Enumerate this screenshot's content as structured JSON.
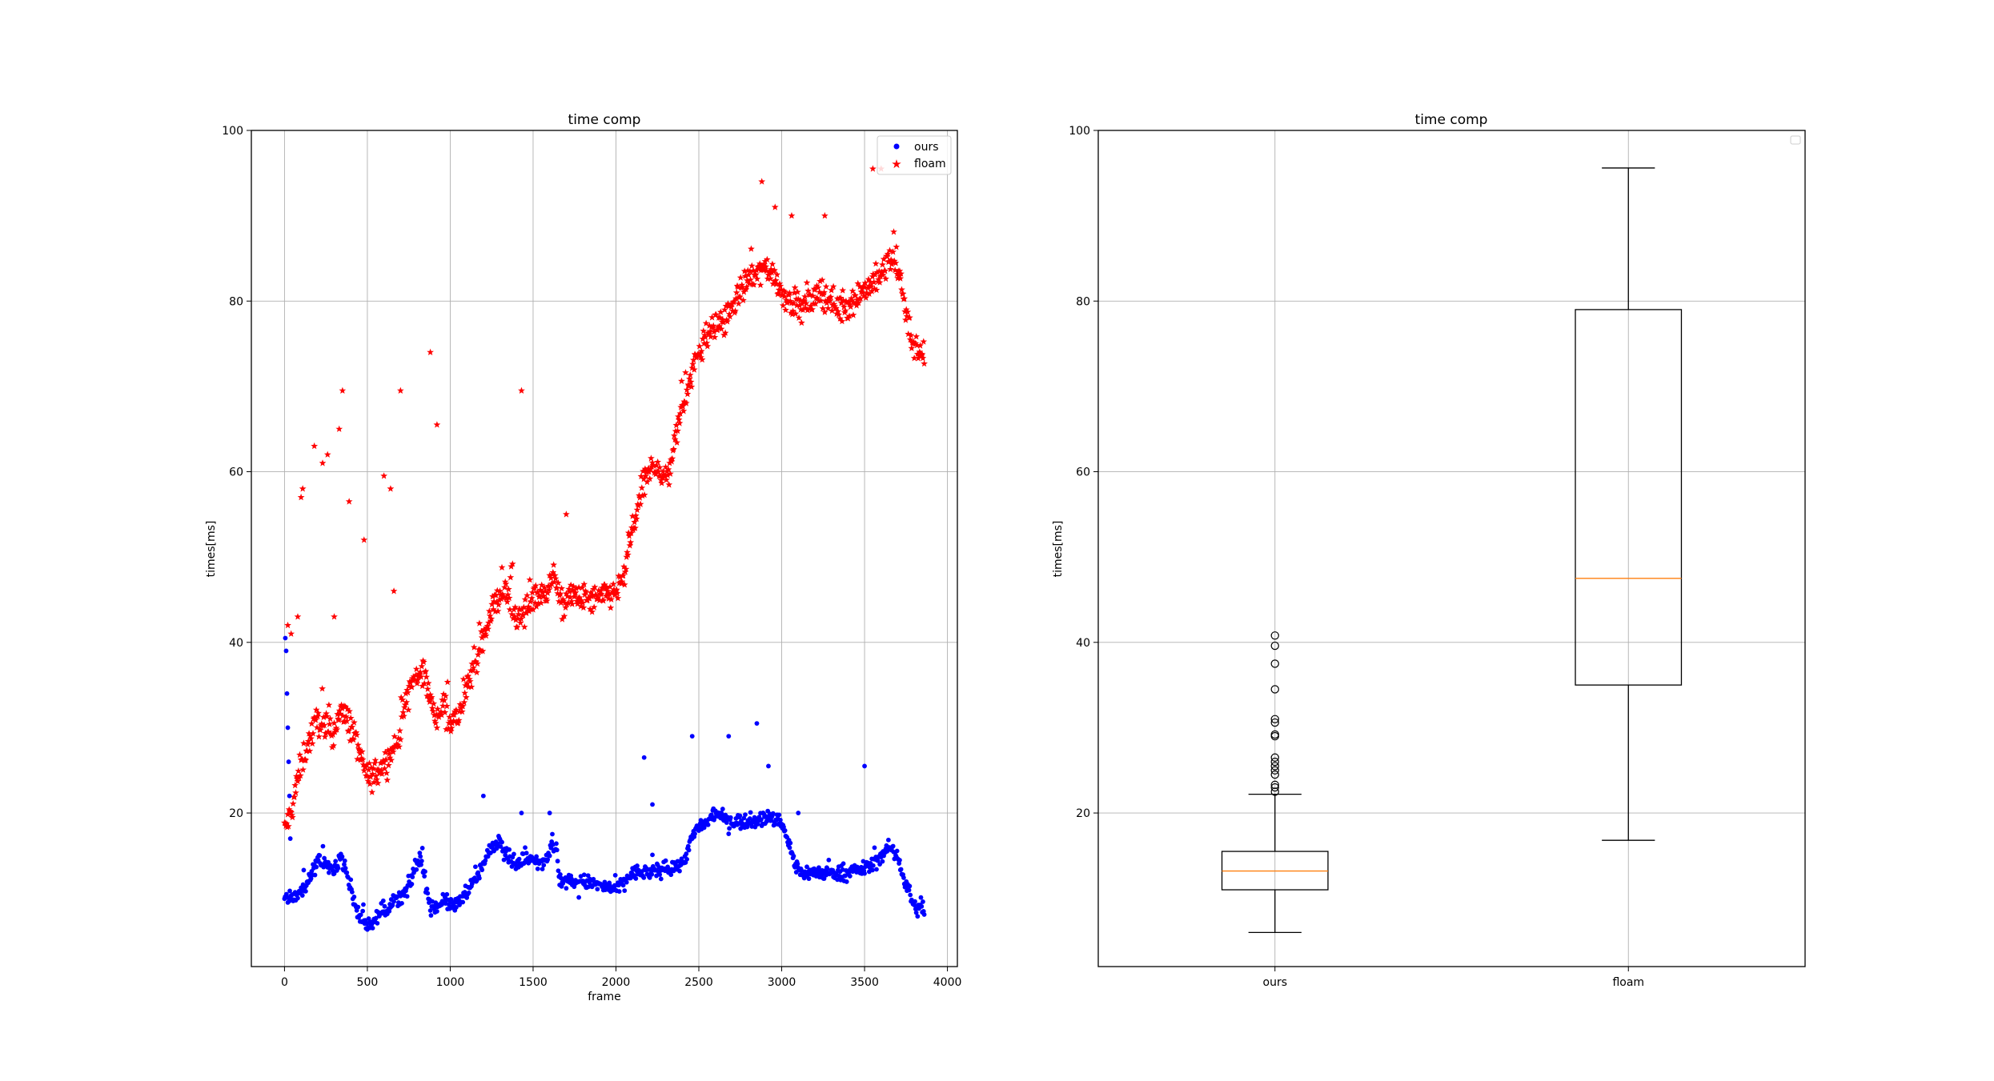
{
  "chart_data": [
    {
      "type": "scatter",
      "title": "time comp",
      "xlabel": "frame",
      "ylabel": "times[ms]",
      "xlim": [
        -200,
        4060
      ],
      "ylim": [
        2,
        100
      ],
      "xticks": [
        0,
        500,
        1000,
        1500,
        2000,
        2500,
        3000,
        3500,
        4000
      ],
      "yticks": [
        20,
        40,
        60,
        80,
        100
      ],
      "grid": true,
      "legend_position": "top-right",
      "series": [
        {
          "name": "ours",
          "marker": "dot",
          "color": "#0000ff",
          "trend": [
            [
              0,
              10
            ],
            [
              60,
              10.2
            ],
            [
              120,
              11
            ],
            [
              160,
              13
            ],
            [
              200,
              14.5
            ],
            [
              260,
              14
            ],
            [
              300,
              13
            ],
            [
              330,
              15
            ],
            [
              360,
              14
            ],
            [
              400,
              11
            ],
            [
              430,
              9
            ],
            [
              460,
              7.5
            ],
            [
              500,
              7
            ],
            [
              550,
              7.5
            ],
            [
              600,
              8.5
            ],
            [
              650,
              9.5
            ],
            [
              700,
              10
            ],
            [
              740,
              11
            ],
            [
              780,
              13
            ],
            [
              800,
              14
            ],
            [
              820,
              15
            ],
            [
              850,
              12
            ],
            [
              880,
              9
            ],
            [
              920,
              9
            ],
            [
              960,
              10
            ],
            [
              1000,
              9
            ],
            [
              1050,
              9.5
            ],
            [
              1100,
              11
            ],
            [
              1150,
              12
            ],
            [
              1200,
              14
            ],
            [
              1250,
              16
            ],
            [
              1300,
              17
            ],
            [
              1350,
              15
            ],
            [
              1400,
              14
            ],
            [
              1450,
              14.5
            ],
            [
              1500,
              15
            ],
            [
              1550,
              14
            ],
            [
              1600,
              15.5
            ],
            [
              1640,
              16
            ],
            [
              1660,
              12
            ],
            [
              1700,
              12
            ],
            [
              1800,
              12
            ],
            [
              1900,
              11.5
            ],
            [
              2000,
              11
            ],
            [
              2050,
              12
            ],
            [
              2100,
              13
            ],
            [
              2200,
              13
            ],
            [
              2300,
              13.5
            ],
            [
              2400,
              14
            ],
            [
              2440,
              16
            ],
            [
              2480,
              18
            ],
            [
              2520,
              18.5
            ],
            [
              2560,
              19
            ],
            [
              2600,
              20
            ],
            [
              2650,
              19.5
            ],
            [
              2700,
              19
            ],
            [
              2800,
              19
            ],
            [
              2900,
              19.5
            ],
            [
              3000,
              19
            ],
            [
              3050,
              16
            ],
            [
              3080,
              14
            ],
            [
              3120,
              13
            ],
            [
              3200,
              13
            ],
            [
              3300,
              13
            ],
            [
              3400,
              13
            ],
            [
              3500,
              13.5
            ],
            [
              3550,
              14
            ],
            [
              3600,
              15
            ],
            [
              3650,
              16
            ],
            [
              3700,
              15
            ],
            [
              3740,
              12
            ],
            [
              3780,
              10
            ],
            [
              3800,
              9
            ],
            [
              3860,
              8.5
            ]
          ],
          "noise": 0.8,
          "outliers": [
            [
              5,
              40.5
            ],
            [
              10,
              39
            ],
            [
              15,
              34
            ],
            [
              20,
              30
            ],
            [
              25,
              26
            ],
            [
              30,
              22
            ],
            [
              35,
              17
            ],
            [
              1200,
              22
            ],
            [
              1600,
              20
            ],
            [
              2170,
              26.5
            ],
            [
              2460,
              29
            ],
            [
              2680,
              29
            ],
            [
              2850,
              30.5
            ],
            [
              2920,
              25.5
            ],
            [
              3500,
              25.5
            ],
            [
              3100,
              20
            ],
            [
              2220,
              21
            ],
            [
              1430,
              20
            ]
          ]
        },
        {
          "name": "floam",
          "marker": "star",
          "color": "#ff0000",
          "trend": [
            [
              0,
              18
            ],
            [
              40,
              20
            ],
            [
              80,
              24
            ],
            [
              120,
              27
            ],
            [
              160,
              29
            ],
            [
              200,
              31
            ],
            [
              240,
              30
            ],
            [
              280,
              29
            ],
            [
              320,
              31
            ],
            [
              360,
              32
            ],
            [
              400,
              30
            ],
            [
              440,
              28
            ],
            [
              480,
              25
            ],
            [
              520,
              24
            ],
            [
              560,
              25
            ],
            [
              600,
              26
            ],
            [
              640,
              27
            ],
            [
              680,
              28
            ],
            [
              720,
              32
            ],
            [
              760,
              35
            ],
            [
              800,
              36
            ],
            [
              840,
              37
            ],
            [
              880,
              33
            ],
            [
              920,
              31
            ],
            [
              960,
              33
            ],
            [
              1000,
              31
            ],
            [
              1040,
              31
            ],
            [
              1080,
              33
            ],
            [
              1120,
              36
            ],
            [
              1160,
              38
            ],
            [
              1200,
              41
            ],
            [
              1240,
              43
            ],
            [
              1280,
              45
            ],
            [
              1320,
              46
            ],
            [
              1360,
              45
            ],
            [
              1400,
              43
            ],
            [
              1440,
              43
            ],
            [
              1480,
              45
            ],
            [
              1520,
              46
            ],
            [
              1560,
              45
            ],
            [
              1600,
              47
            ],
            [
              1640,
              48
            ],
            [
              1660,
              44
            ],
            [
              1700,
              45
            ],
            [
              1760,
              45.5
            ],
            [
              1820,
              45
            ],
            [
              1880,
              45
            ],
            [
              1940,
              45.5
            ],
            [
              2000,
              46
            ],
            [
              2040,
              47
            ],
            [
              2080,
              51
            ],
            [
              2120,
              55
            ],
            [
              2160,
              58
            ],
            [
              2200,
              60
            ],
            [
              2240,
              61
            ],
            [
              2280,
              59
            ],
            [
              2320,
              60
            ],
            [
              2360,
              64
            ],
            [
              2400,
              68
            ],
            [
              2440,
              70
            ],
            [
              2480,
              73
            ],
            [
              2520,
              75
            ],
            [
              2560,
              76
            ],
            [
              2600,
              77
            ],
            [
              2660,
              78
            ],
            [
              2720,
              80
            ],
            [
              2780,
              82
            ],
            [
              2840,
              83
            ],
            [
              2900,
              84
            ],
            [
              2960,
              83
            ],
            [
              3000,
              81
            ],
            [
              3060,
              80
            ],
            [
              3120,
              79
            ],
            [
              3180,
              80
            ],
            [
              3240,
              81
            ],
            [
              3300,
              80
            ],
            [
              3360,
              79
            ],
            [
              3420,
              80
            ],
            [
              3480,
              81
            ],
            [
              3540,
              82
            ],
            [
              3600,
              83
            ],
            [
              3650,
              85
            ],
            [
              3700,
              84
            ],
            [
              3740,
              80
            ],
            [
              3780,
              76
            ],
            [
              3820,
              74
            ],
            [
              3860,
              73
            ]
          ],
          "noise": 1.6,
          "outliers": [
            [
              20,
              42
            ],
            [
              40,
              41
            ],
            [
              80,
              43
            ],
            [
              100,
              57
            ],
            [
              110,
              58
            ],
            [
              180,
              63
            ],
            [
              230,
              61
            ],
            [
              260,
              62
            ],
            [
              300,
              43
            ],
            [
              330,
              65
            ],
            [
              350,
              69.5
            ],
            [
              390,
              56.5
            ],
            [
              480,
              52
            ],
            [
              600,
              59.5
            ],
            [
              640,
              58
            ],
            [
              660,
              46
            ],
            [
              700,
              69.5
            ],
            [
              880,
              74
            ],
            [
              920,
              65.5
            ],
            [
              1430,
              69.5
            ],
            [
              1700,
              55
            ],
            [
              2880,
              94
            ],
            [
              2960,
              91
            ],
            [
              3060,
              90
            ],
            [
              3260,
              90
            ],
            [
              3550,
              95.5
            ],
            [
              3600,
              95.5
            ]
          ]
        }
      ]
    },
    {
      "type": "box",
      "title": "time comp",
      "xlabel": "",
      "ylabel": "times[ms]",
      "ylim": [
        2,
        100
      ],
      "yticks": [
        20,
        40,
        60,
        80,
        100
      ],
      "grid": true,
      "legend_position": "top-right",
      "categories": [
        "ours",
        "floam"
      ],
      "boxes": [
        {
          "name": "ours",
          "whisker_low": 6,
          "q1": 11,
          "median": 13.2,
          "q3": 15.5,
          "whisker_high": 22.2,
          "fliers": [
            22.5,
            23,
            23.3,
            24.5,
            25,
            25.5,
            26,
            26.5,
            29,
            29.2,
            30.6,
            31,
            34.5,
            37.5,
            39.6,
            40.8
          ]
        },
        {
          "name": "floam",
          "whisker_low": 16.8,
          "q1": 35,
          "median": 47.5,
          "q3": 79,
          "whisker_high": 95.6,
          "fliers": []
        }
      ],
      "median_color": "#ff7f0e"
    }
  ]
}
